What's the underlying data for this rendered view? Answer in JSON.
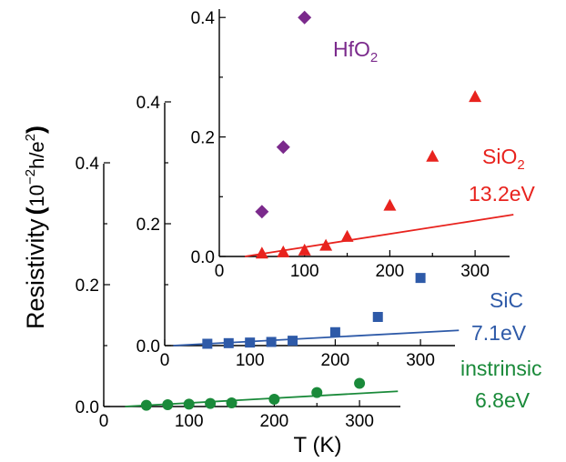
{
  "chart_data": {
    "type": "scatter",
    "ylabel": {
      "main": "Resistivity",
      "paren_open": "(",
      "unit_base": "10",
      "unit_exp": "−2",
      "unit_h": "h/e",
      "unit_e_exp": "2",
      "paren_close": ")"
    },
    "xlabel": "T (K)",
    "panels": [
      {
        "id": "intrinsic",
        "material": "instrinsic",
        "energy": "6.8eV",
        "color": "#1a8a3a",
        "marker": "circle",
        "xlim": [
          0,
          350
        ],
        "ylim": [
          0,
          0.4
        ],
        "x_ticks": [
          "0",
          "100",
          "200",
          "300"
        ],
        "y_ticks": [
          "0.0",
          "0.2",
          "0.4"
        ],
        "points": [
          {
            "x": 50,
            "y": 0.002
          },
          {
            "x": 75,
            "y": 0.003
          },
          {
            "x": 100,
            "y": 0.004
          },
          {
            "x": 125,
            "y": 0.005
          },
          {
            "x": 150,
            "y": 0.006
          },
          {
            "x": 200,
            "y": 0.012
          },
          {
            "x": 250,
            "y": 0.023
          },
          {
            "x": 300,
            "y": 0.038
          }
        ],
        "fit": [
          {
            "x": 25,
            "y": 0.0
          },
          {
            "x": 345,
            "y": 0.025
          }
        ]
      },
      {
        "id": "sic",
        "material": "SiC",
        "energy": "7.1eV",
        "color": "#2e5aa8",
        "marker": "square",
        "xlim": [
          0,
          350
        ],
        "ylim": [
          0,
          0.4
        ],
        "x_ticks": [
          "0",
          "100",
          "200",
          "300"
        ],
        "y_ticks": [
          "0.0",
          "0.2",
          "0.4"
        ],
        "points": [
          {
            "x": 50,
            "y": 0.003
          },
          {
            "x": 75,
            "y": 0.004
          },
          {
            "x": 100,
            "y": 0.005
          },
          {
            "x": 125,
            "y": 0.006
          },
          {
            "x": 150,
            "y": 0.008
          },
          {
            "x": 200,
            "y": 0.022
          },
          {
            "x": 250,
            "y": 0.047
          },
          {
            "x": 300,
            "y": 0.111
          }
        ],
        "fit": [
          {
            "x": 10,
            "y": 0.0
          },
          {
            "x": 345,
            "y": 0.025
          }
        ]
      },
      {
        "id": "sio2",
        "material": "SiO",
        "material_sub": "2",
        "energy": "13.2eV",
        "color": "#e8231e",
        "marker": "triangle",
        "xlim": [
          0,
          350
        ],
        "ylim": [
          0,
          0.4
        ],
        "x_ticks": [
          "0",
          "100",
          "200",
          "300"
        ],
        "y_ticks": [
          "0.0",
          "0.2",
          "0.4"
        ],
        "points": [
          {
            "x": 50,
            "y": 0.005
          },
          {
            "x": 75,
            "y": 0.007
          },
          {
            "x": 100,
            "y": 0.01
          },
          {
            "x": 125,
            "y": 0.018
          },
          {
            "x": 150,
            "y": 0.033
          },
          {
            "x": 200,
            "y": 0.085
          },
          {
            "x": 250,
            "y": 0.167
          },
          {
            "x": 300,
            "y": 0.267
          }
        ],
        "fit": [
          {
            "x": 30,
            "y": 0.0
          },
          {
            "x": 345,
            "y": 0.07
          }
        ]
      },
      {
        "id": "hfo2",
        "material": "HfO",
        "material_sub": "2",
        "color": "#7b2a8c",
        "marker": "diamond",
        "points": [
          {
            "x": 50,
            "y": 0.075
          },
          {
            "x": 75,
            "y": 0.183
          },
          {
            "x": 100,
            "y": 0.4
          }
        ]
      }
    ]
  }
}
